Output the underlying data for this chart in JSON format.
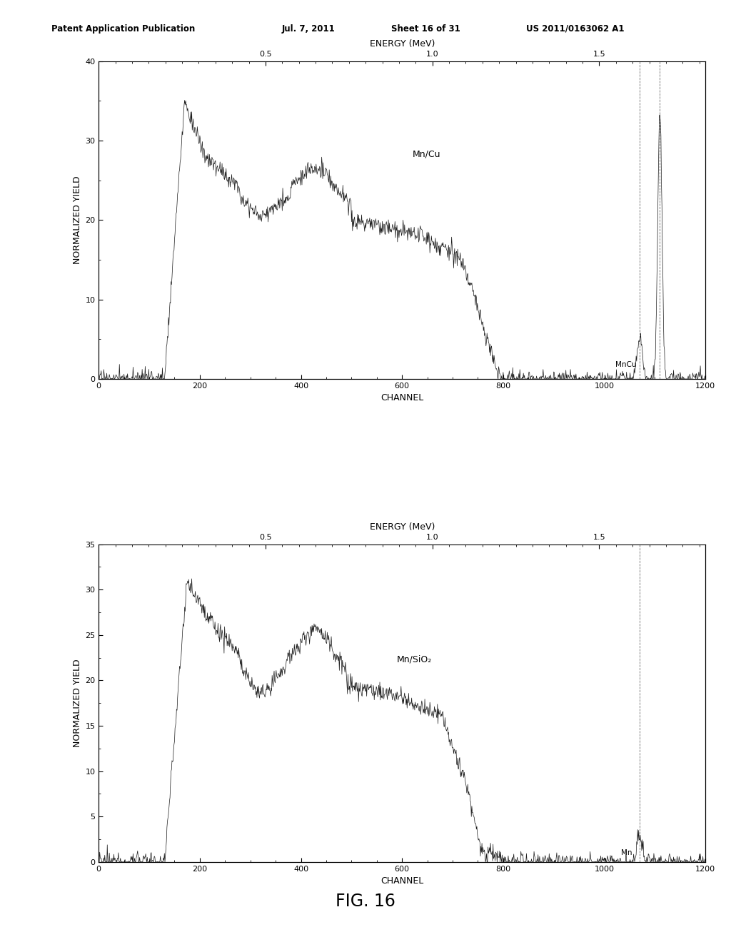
{
  "bg_color": "#ffffff",
  "header": {
    "left": "Patent Application Publication",
    "mid1": "Jul. 7, 2011",
    "mid2": "Sheet 16 of 31",
    "right": "US 2011/0163062 A1"
  },
  "fig_label": "FIG. 16",
  "plot1": {
    "top_xlabel": "ENERGY (MeV)",
    "xlabel": "CHANNEL",
    "ylabel": "NORMALIZED YIELD",
    "annotation": "Mn/Cu",
    "annotation2": "MnCu",
    "ann_x": 620,
    "ann_y": 28,
    "ann2_x": 1022,
    "ann2_y": 1.5,
    "xlim": [
      0,
      1200
    ],
    "ylim": [
      0,
      40
    ],
    "yticks": [
      0,
      10,
      20,
      30,
      40
    ],
    "xticks": [
      0,
      200,
      400,
      600,
      800,
      1000,
      1200
    ],
    "energy_tick_channels": [
      330,
      660,
      990
    ],
    "energy_tick_labels": [
      "0.5",
      "1.0",
      "1.5"
    ],
    "vline1": 1070,
    "vline2": 1110
  },
  "plot2": {
    "top_xlabel": "ENERGY (MeV)",
    "xlabel": "CHANNEL",
    "ylabel": "NORMALIZED YIELD",
    "annotation": "Mn/SiO₂",
    "annotation2": "Mn",
    "ann_x": 590,
    "ann_y": 22,
    "ann2_x": 1033,
    "ann2_y": 0.8,
    "xlim": [
      0,
      1200
    ],
    "ylim": [
      0,
      35
    ],
    "yticks": [
      0,
      5,
      10,
      15,
      20,
      25,
      30,
      35
    ],
    "xticks": [
      0,
      200,
      400,
      600,
      800,
      1000,
      1200
    ],
    "energy_tick_channels": [
      330,
      660,
      990
    ],
    "energy_tick_labels": [
      "0.5",
      "1.0",
      "1.5"
    ],
    "vline1": 1070
  }
}
